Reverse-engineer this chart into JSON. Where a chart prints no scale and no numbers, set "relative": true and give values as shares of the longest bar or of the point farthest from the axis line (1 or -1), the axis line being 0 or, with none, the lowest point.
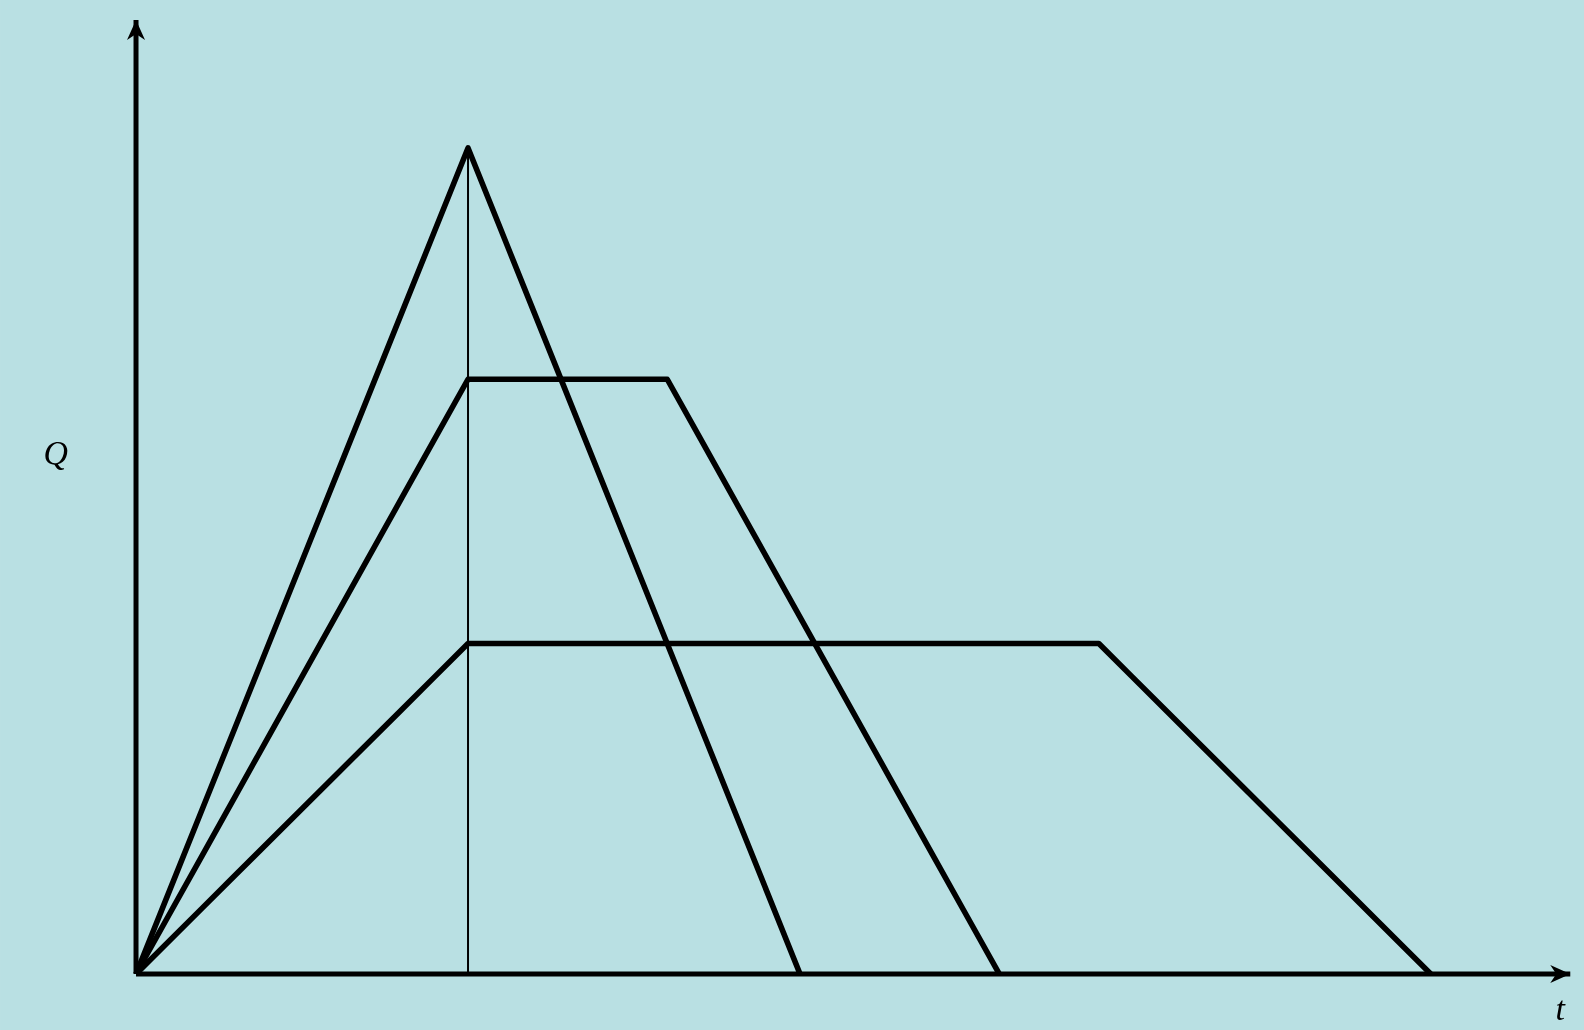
{
  "chart_data": {
    "type": "line",
    "xlabel": "t",
    "ylabel": "Q",
    "relative": true,
    "line_style": "solid",
    "categories": [
      null,
      null,
      null,
      null,
      null,
      null,
      null,
      null,
      null,
      null,
      null,
      null,
      null,
      null,
      null,
      null,
      null,
      null,
      null,
      null,
      null,
      null,
      null,
      null,
      null,
      null,
      null,
      null,
      null,
      null,
      null,
      null,
      null,
      null,
      null,
      null,
      null,
      null,
      null,
      null,
      null,
      null,
      null,
      null
    ],
    "series": [
      {
        "color": "#000000",
        "values": [
          0,
          0.1,
          0.2,
          0.3,
          0.4,
          0.5,
          0.6,
          0.7,
          0.8,
          0.9,
          1,
          0.9,
          0.8,
          0.7,
          0.6,
          0.5,
          0.4,
          0.3,
          0.2,
          0.1,
          0,
          null,
          null,
          null,
          null,
          null,
          null,
          null,
          null,
          null,
          null,
          null,
          null,
          null,
          null,
          null,
          null,
          null,
          null,
          null,
          null,
          null,
          null,
          null
        ]
      },
      {
        "color": "#000000",
        "values": [
          0,
          0.072,
          0.144,
          0.216,
          0.288,
          0.36,
          0.432,
          0.504,
          0.576,
          0.648,
          0.72,
          0.72,
          0.72,
          0.72,
          0.72,
          0.72,
          0.72,
          0.648,
          0.576,
          0.504,
          0.432,
          0.36,
          0.288,
          0.216,
          0.144,
          0.072,
          0,
          null,
          null,
          null,
          null,
          null,
          null,
          null,
          null,
          null,
          null,
          null,
          null,
          null,
          null,
          null,
          null,
          null
        ]
      },
      {
        "color": "#000000",
        "values": [
          0,
          0.04,
          0.08,
          0.12,
          0.16,
          0.2,
          0.24,
          0.28,
          0.32,
          0.36,
          0.4,
          0.4,
          0.4,
          0.4,
          0.4,
          0.4,
          0.4,
          0.4,
          0.4,
          0.4,
          0.4,
          0.4,
          0.4,
          0.4,
          0.4,
          0.4,
          0.4,
          0.4,
          0.4,
          0.4,
          0.36,
          0.32,
          0.28,
          0.24,
          0.2,
          0.16,
          0.12,
          0.08,
          0.04,
          0,
          null,
          null,
          null,
          null
        ]
      }
    ]
  }
}
